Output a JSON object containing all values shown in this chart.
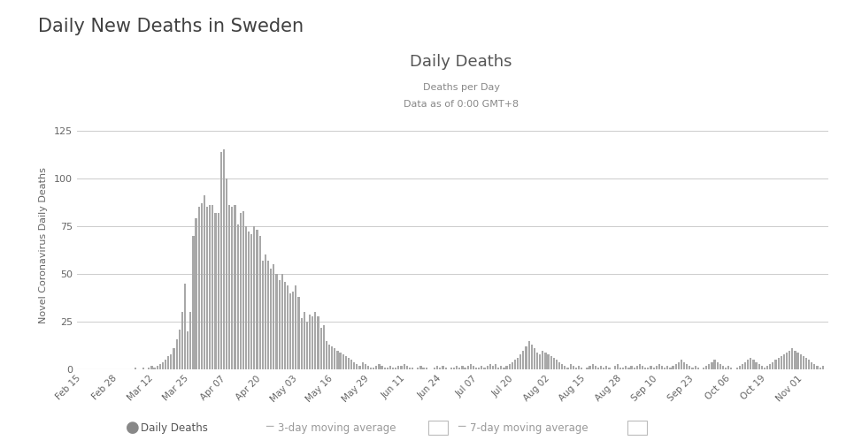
{
  "title_main": "Daily New Deaths in Sweden",
  "chart_title": "Daily Deaths",
  "subtitle1": "Deaths per Day",
  "subtitle2": "Data as of 0:00 GMT+8",
  "ylabel": "Novel Coronavirus Daily Deaths",
  "bar_color": "#a8a8a8",
  "ylim": [
    0,
    130
  ],
  "yticks": [
    0,
    25,
    50,
    75,
    100,
    125
  ],
  "x_tick_labels": [
    "Feb 15",
    "Feb 28",
    "Mar 12",
    "Mar 25",
    "Apr 07",
    "Apr 20",
    "May 03",
    "May 16",
    "May 29",
    "Jun 11",
    "Jun 24",
    "Jul 07",
    "Jul 20",
    "Aug 02",
    "Aug 15",
    "Aug 28",
    "Sep 10",
    "Sep 23",
    "Oct 06",
    "Oct 19",
    "Nov 01"
  ],
  "x_tick_positions": [
    0,
    13,
    26,
    39,
    52,
    65,
    78,
    91,
    104,
    117,
    130,
    143,
    156,
    169,
    182,
    195,
    208,
    221,
    234,
    247,
    260
  ],
  "daily_deaths": [
    0,
    0,
    0,
    0,
    0,
    0,
    0,
    0,
    0,
    0,
    0,
    0,
    0,
    0,
    0,
    0,
    0,
    0,
    0,
    1,
    0,
    0,
    1,
    0,
    1,
    2,
    1,
    2,
    3,
    4,
    5,
    7,
    8,
    11,
    16,
    21,
    30,
    45,
    20,
    30,
    70,
    79,
    85,
    87,
    91,
    85,
    86,
    86,
    82,
    82,
    114,
    115,
    100,
    86,
    85,
    86,
    76,
    82,
    83,
    75,
    72,
    71,
    75,
    73,
    70,
    57,
    60,
    57,
    53,
    55,
    50,
    47,
    50,
    46,
    44,
    40,
    41,
    44,
    38,
    27,
    30,
    25,
    29,
    28,
    30,
    28,
    22,
    23,
    15,
    13,
    12,
    11,
    10,
    9,
    8,
    7,
    6,
    5,
    4,
    3,
    2,
    4,
    3,
    2,
    1,
    1,
    2,
    3,
    2,
    1,
    1,
    2,
    1,
    1,
    2,
    2,
    3,
    2,
    1,
    1,
    0,
    1,
    2,
    1,
    1,
    0,
    0,
    1,
    2,
    1,
    2,
    1,
    0,
    1,
    1,
    2,
    1,
    2,
    1,
    2,
    3,
    2,
    1,
    1,
    2,
    1,
    2,
    3,
    2,
    3,
    1,
    2,
    1,
    2,
    3,
    4,
    5,
    6,
    8,
    10,
    12,
    15,
    13,
    11,
    9,
    8,
    10,
    9,
    8,
    7,
    6,
    5,
    4,
    3,
    2,
    1,
    3,
    2,
    1,
    2,
    1,
    0,
    1,
    2,
    3,
    2,
    1,
    2,
    1,
    2,
    1,
    0,
    2,
    3,
    1,
    1,
    2,
    1,
    2,
    1,
    2,
    3,
    2,
    1,
    1,
    2,
    1,
    2,
    3,
    2,
    1,
    2,
    1,
    2,
    3,
    4,
    5,
    4,
    3,
    2,
    1,
    2,
    1,
    0,
    1,
    2,
    3,
    4,
    5,
    4,
    3,
    2,
    1,
    2,
    1,
    0,
    1,
    2,
    3,
    4,
    5,
    6,
    5,
    4,
    3,
    2,
    1,
    2,
    3,
    4,
    5,
    6,
    7,
    8,
    9,
    10,
    11,
    10,
    9,
    8,
    7,
    6,
    5,
    4,
    3,
    2,
    1,
    2
  ]
}
